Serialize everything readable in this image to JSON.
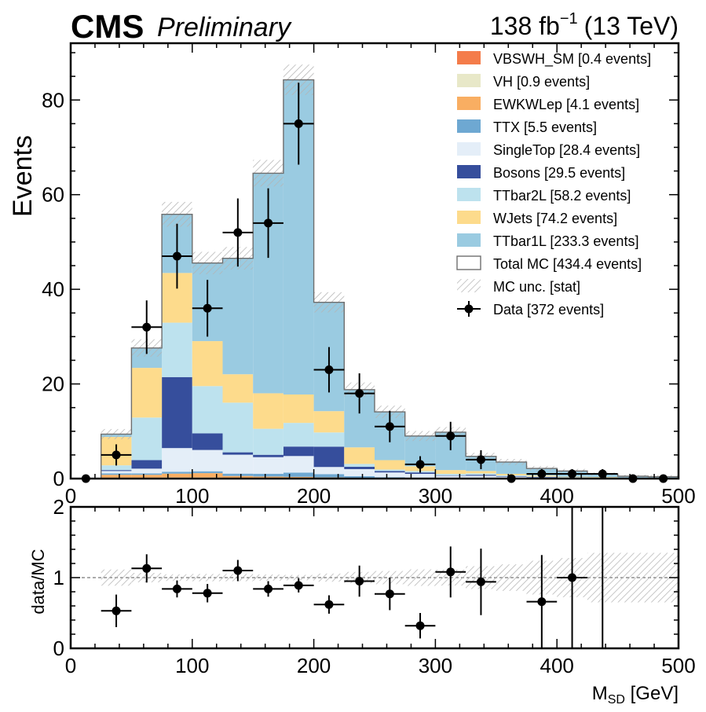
{
  "header": {
    "experiment": "CMS",
    "status": "Preliminary",
    "lumi_value": "138 fb",
    "lumi_exp": "−1",
    "lumi_energy": "(13 TeV)"
  },
  "chart_data": [
    {
      "type": "bar",
      "stacked": true,
      "ylabel": "Events",
      "xlim": [
        0,
        500
      ],
      "ylim": [
        0,
        92
      ],
      "xticks": [
        "0",
        "100",
        "200",
        "300",
        "400",
        "500"
      ],
      "yticks": [
        "0",
        "20",
        "40",
        "60",
        "80"
      ],
      "bin_edges": [
        0,
        25,
        50,
        75,
        100,
        125,
        150,
        175,
        200,
        225,
        250,
        275,
        300,
        325,
        350,
        375,
        400,
        425,
        450,
        475,
        500
      ],
      "series": [
        {
          "name": "VBSWH_SM [0.4 events]",
          "color": "#f47c4a",
          "values": [
            0,
            0.1,
            0.1,
            0.05,
            0.05,
            0.05,
            0.03,
            0.02,
            0,
            0,
            0,
            0,
            0,
            0,
            0,
            0,
            0,
            0,
            0,
            0
          ]
        },
        {
          "name": "VH [0.9 events]",
          "color": "#e8e8c8",
          "values": [
            0,
            0.1,
            0.1,
            0.2,
            0.2,
            0.1,
            0.1,
            0.05,
            0.05,
            0,
            0,
            0,
            0,
            0,
            0,
            0,
            0,
            0,
            0,
            0
          ]
        },
        {
          "name": "EWKWLep [4.1 events]",
          "color": "#f9ae62",
          "values": [
            0,
            0.6,
            0.6,
            0.8,
            0.9,
            0.4,
            0.3,
            0.3,
            0.2,
            0,
            0,
            0,
            0,
            0,
            0,
            0,
            0,
            0,
            0,
            0
          ]
        },
        {
          "name": "TTX [5.5 events]",
          "color": "#6ea8d2",
          "values": [
            0,
            0.3,
            0.3,
            0.4,
            0.4,
            0.5,
            0.6,
            0.9,
            0.7,
            0.5,
            0.3,
            0.2,
            0.1,
            0.1,
            0.1,
            0.05,
            0.05,
            0,
            0,
            0
          ]
        },
        {
          "name": "SingleTop [28.4 events]",
          "color": "#e4eef8",
          "values": [
            0,
            0.5,
            1,
            5,
            4.5,
            4,
            3.5,
            3.5,
            1.5,
            1.5,
            1,
            0.8,
            0.5,
            0.5,
            0.3,
            0.2,
            0.1,
            0.1,
            0,
            0
          ]
        },
        {
          "name": "Bosons [29.5 events]",
          "color": "#364e9c",
          "values": [
            0,
            0.2,
            1.8,
            15,
            3.5,
            0.5,
            0.5,
            2,
            4.3,
            0.5,
            0.3,
            0.3,
            0.1,
            0.2,
            0.1,
            0.1,
            0.05,
            0.05,
            0,
            0
          ]
        },
        {
          "name": "TTbar2L [58.2 events]",
          "color": "#bde2ee",
          "values": [
            0,
            1,
            9,
            11.5,
            10,
            10.5,
            5.5,
            5,
            3,
            0.6,
            0.3,
            0.3,
            0.3,
            0.3,
            0.2,
            0.1,
            0.1,
            0.1,
            0,
            0
          ]
        },
        {
          "name": "WJets [74.2 events]",
          "color": "#fddb8c",
          "values": [
            0,
            6,
            10.5,
            10.5,
            9.5,
            6,
            7.5,
            6,
            4.5,
            3.5,
            2,
            1,
            0.8,
            0.5,
            0.3,
            0.2,
            0.1,
            0.1,
            0.1,
            0
          ]
        },
        {
          "name": "TTbar1L [233.3 events]",
          "color": "#9acbe1",
          "values": [
            0,
            0.6,
            4.2,
            12.4,
            16.5,
            24.5,
            46.5,
            66.5,
            23,
            12.2,
            10.2,
            6.4,
            8,
            3.1,
            2.5,
            1.5,
            1.2,
            0.6,
            0.4,
            0.4
          ]
        }
      ],
      "totals_legend": "Total MC [434.4 events]",
      "unc_legend": "MC unc. [stat]",
      "data": {
        "name": "Data [372 events]",
        "x": [
          12.5,
          37.5,
          62.5,
          87.5,
          112.5,
          137.5,
          162.5,
          187.5,
          212.5,
          237.5,
          262.5,
          287.5,
          312.5,
          337.5,
          362.5,
          387.5,
          412.5,
          437.5,
          462.5,
          487.5
        ],
        "y": [
          0,
          5,
          32,
          47,
          36,
          52,
          54,
          75,
          23,
          18,
          11,
          3,
          9,
          4,
          0,
          1,
          1,
          1,
          0,
          0
        ]
      }
    },
    {
      "type": "scatter",
      "ylabel": "data/MC",
      "xlabel_main": "M",
      "xlabel_sub": "SD",
      "xlabel_unit": " [GeV]",
      "xlim": [
        0,
        500
      ],
      "ylim": [
        0,
        2
      ],
      "xticks": [
        "0",
        "100",
        "200",
        "300",
        "400",
        "500"
      ],
      "yticks": [
        "0",
        "1",
        "2"
      ],
      "x": [
        37.5,
        62.5,
        87.5,
        112.5,
        137.5,
        162.5,
        187.5,
        212.5,
        237.5,
        262.5,
        287.5,
        312.5,
        337.5,
        387.5,
        412.5
      ],
      "y": [
        0.53,
        1.13,
        0.84,
        0.78,
        1.1,
        0.84,
        0.89,
        0.62,
        0.95,
        0.77,
        0.32,
        1.08,
        0.94,
        0.66,
        1.0
      ],
      "yerr": [
        0.23,
        0.2,
        0.12,
        0.13,
        0.15,
        0.11,
        0.1,
        0.13,
        0.22,
        0.23,
        0.18,
        0.36,
        0.47,
        0.66,
        1.0
      ],
      "reference_line": 1
    }
  ]
}
